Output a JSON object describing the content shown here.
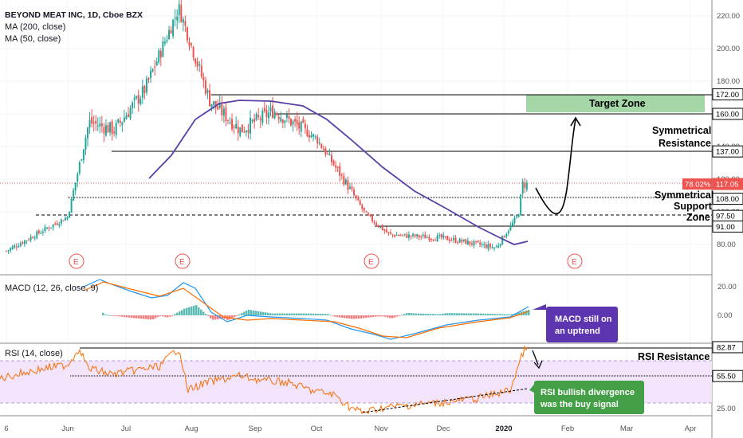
{
  "header": {
    "symbol_line": "BEYOND MEAT INC, 1D, Cboe BZX",
    "ma200_label": "MA (200, close)",
    "ma50_label": "MA (50, close)",
    "macd_label": "MACD (12, 26, close, 9)",
    "rsi_label": "RSI (14, close)"
  },
  "annotations": {
    "target_zone": "Target Zone",
    "sym_resistance_1": "Symmetrical",
    "sym_resistance_2": "Resistance",
    "sym_support_1": "Symmetrical",
    "sym_support_2": "Support",
    "sym_support_3": "Zone",
    "rsi_resistance": "RSI Resistance",
    "macd_note_1": "MACD still on",
    "macd_note_2": "an uptrend",
    "rsi_note_1": "RSI bullish divergence",
    "rsi_note_2": "was the buy signal",
    "earnings_marker": "E"
  },
  "chart_data": [
    {
      "type": "candlestick",
      "title": "BEYOND MEAT INC, 1D, Cboe BZX",
      "y_ticks": [
        80,
        100,
        120,
        140,
        160,
        180,
        200,
        220
      ],
      "ylim": [
        68,
        232
      ],
      "x_ticks": [
        "6",
        "Jun",
        "Jul",
        "Aug",
        "Sep",
        "Oct",
        "Nov",
        "Dec",
        "2020",
        "Feb",
        "Mar",
        "Apr"
      ],
      "price_levels": [
        172.0,
        160.0,
        137.0,
        117.05,
        108.0,
        97.5,
        91.0
      ],
      "last_price": "117.05",
      "change_tag": "78.02%",
      "approx_close_path": [
        {
          "x": "May 6",
          "y": 74
        },
        {
          "x": "Jun 1",
          "y": 97
        },
        {
          "x": "Jun 12",
          "y": 155
        },
        {
          "x": "Jun 25",
          "y": 150
        },
        {
          "x": "Jul 10",
          "y": 175
        },
        {
          "x": "Jul 26",
          "y": 225
        },
        {
          "x": "Aug 10",
          "y": 168
        },
        {
          "x": "Aug 25",
          "y": 150
        },
        {
          "x": "Sep 10",
          "y": 162
        },
        {
          "x": "Oct 1",
          "y": 145
        },
        {
          "x": "Oct 15",
          "y": 118
        },
        {
          "x": "Oct 25",
          "y": 98
        },
        {
          "x": "Nov 5",
          "y": 86
        },
        {
          "x": "Dec 1",
          "y": 84
        },
        {
          "x": "Dec 28",
          "y": 78
        },
        {
          "x": "Jan 8",
          "y": 98
        },
        {
          "x": "Jan 10",
          "y": 117
        }
      ],
      "series": [
        {
          "name": "MA (50, close)",
          "color": "#5b3fa8"
        }
      ],
      "earnings_markers": [
        "Jun",
        "Aug",
        "Nov",
        "Feb"
      ]
    },
    {
      "type": "line",
      "title": "MACD (12, 26, close, 9)",
      "y_ticks": [
        20.0,
        0.0
      ],
      "series": [
        {
          "color": "#2196f3"
        },
        {
          "color": "#ff6d00"
        }
      ]
    },
    {
      "type": "line",
      "title": "RSI (14, close)",
      "y_ticks": [
        25.0,
        55.5,
        82.87
      ],
      "levels": [
        "82.87",
        "55.50"
      ],
      "band": [
        30,
        70
      ],
      "series": [
        {
          "color": "#ff6d00"
        }
      ]
    }
  ],
  "colors": {
    "up": "#26a69a",
    "down": "#ef5350",
    "ma": "#5b3fa8",
    "target_zone": "#a5d6a7",
    "note_green": "#43a047",
    "note_purple": "#5e35b1",
    "rsi_band": "#f3e5f5"
  }
}
